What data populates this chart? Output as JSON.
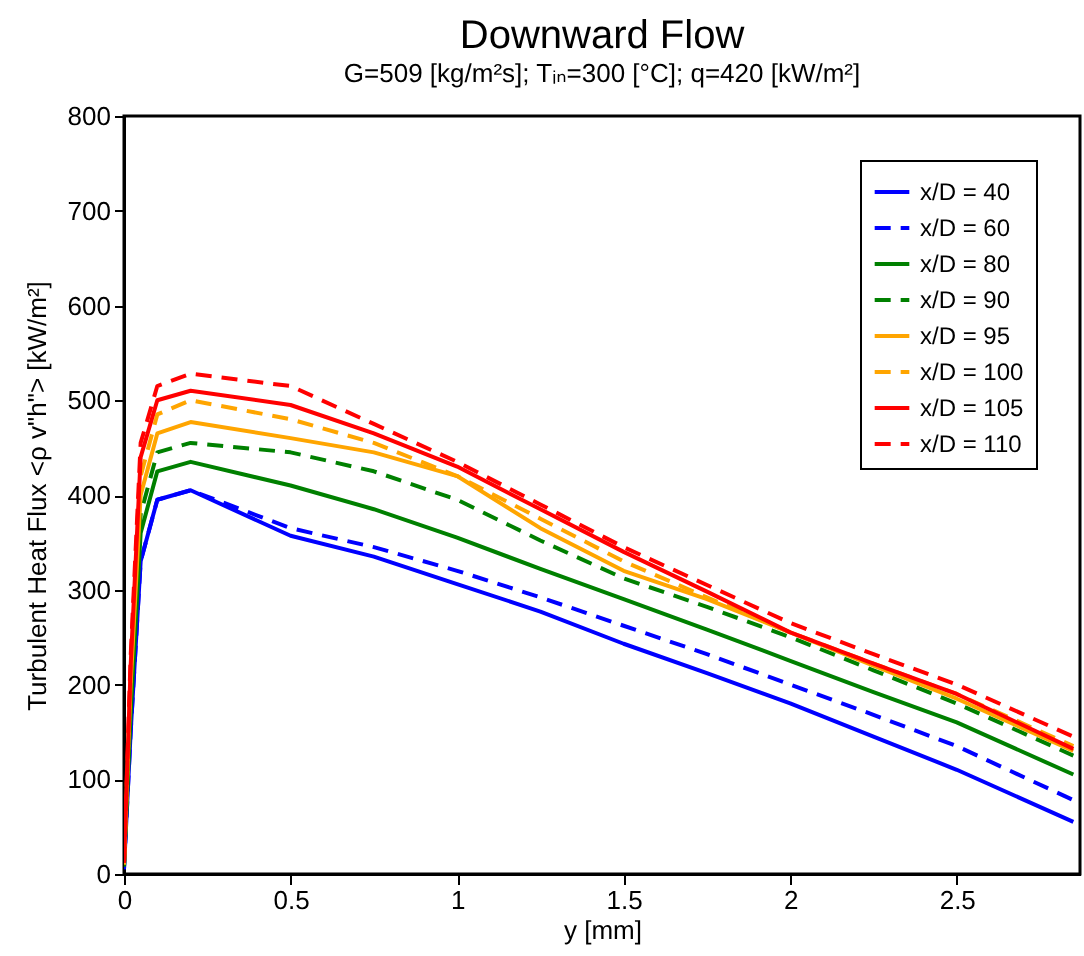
{
  "chart_data": {
    "type": "line",
    "title": "Downward Flow",
    "subtitle": "G=509 [kg/m²s];   Tᵢₙ=300 [°C];   q=420 [kW/m²]",
    "xlabel": "y [mm]",
    "ylabel": "Turbulent Heat Flux  <ρ v\"h\">  [kW/m²]",
    "x": [
      0,
      0.02,
      0.05,
      0.1,
      0.2,
      0.5,
      0.75,
      1,
      1.25,
      1.5,
      1.75,
      2,
      2.25,
      2.5,
      2.85
    ],
    "xlim": [
      0,
      2.87
    ],
    "xticks": [
      0,
      0.5,
      1,
      1.5,
      2,
      2.5
    ],
    "ylim": [
      0,
      800
    ],
    "yticks": [
      0,
      100,
      200,
      300,
      400,
      500,
      600,
      700,
      800
    ],
    "grid": false,
    "legend": "top right",
    "series": [
      {
        "name": "x/D = 40",
        "color": "#0000ff",
        "line_style": "solid",
        "values": [
          5,
          150,
          330,
          395,
          405,
          357,
          335,
          306,
          277,
          243,
          212,
          180,
          145,
          110,
          55
        ]
      },
      {
        "name": "x/D = 60",
        "color": "#0000ff",
        "line_style": "dashed",
        "values": [
          5,
          150,
          330,
          395,
          405,
          365,
          345,
          320,
          292,
          262,
          232,
          200,
          168,
          135,
          78
        ]
      },
      {
        "name": "x/D = 80",
        "color": "#008000",
        "line_style": "solid",
        "values": [
          8,
          170,
          360,
          425,
          435,
          410,
          385,
          355,
          322,
          290,
          258,
          225,
          192,
          160,
          105
        ]
      },
      {
        "name": "x/D = 90",
        "color": "#008000",
        "line_style": "dashed",
        "values": [
          8,
          180,
          380,
          445,
          455,
          445,
          425,
          395,
          352,
          312,
          282,
          250,
          215,
          180,
          125
        ]
      },
      {
        "name": "x/D = 95",
        "color": "#ffa500",
        "line_style": "solid",
        "values": [
          10,
          200,
          400,
          465,
          477,
          460,
          445,
          420,
          365,
          320,
          290,
          255,
          220,
          185,
          130
        ]
      },
      {
        "name": "x/D = 100",
        "color": "#ffa500",
        "line_style": "dashed",
        "values": [
          10,
          210,
          420,
          485,
          500,
          480,
          455,
          420,
          375,
          330,
          292,
          255,
          222,
          190,
          135
        ]
      },
      {
        "name": "x/D = 105",
        "color": "#ff0000",
        "line_style": "solid",
        "values": [
          12,
          220,
          440,
          500,
          510,
          495,
          465,
          430,
          385,
          340,
          298,
          255,
          222,
          190,
          132
        ]
      },
      {
        "name": "x/D = 110",
        "color": "#ff0000",
        "line_style": "dashed",
        "values": [
          12,
          230,
          455,
          515,
          528,
          515,
          475,
          435,
          390,
          345,
          305,
          265,
          232,
          200,
          145
        ]
      }
    ]
  }
}
